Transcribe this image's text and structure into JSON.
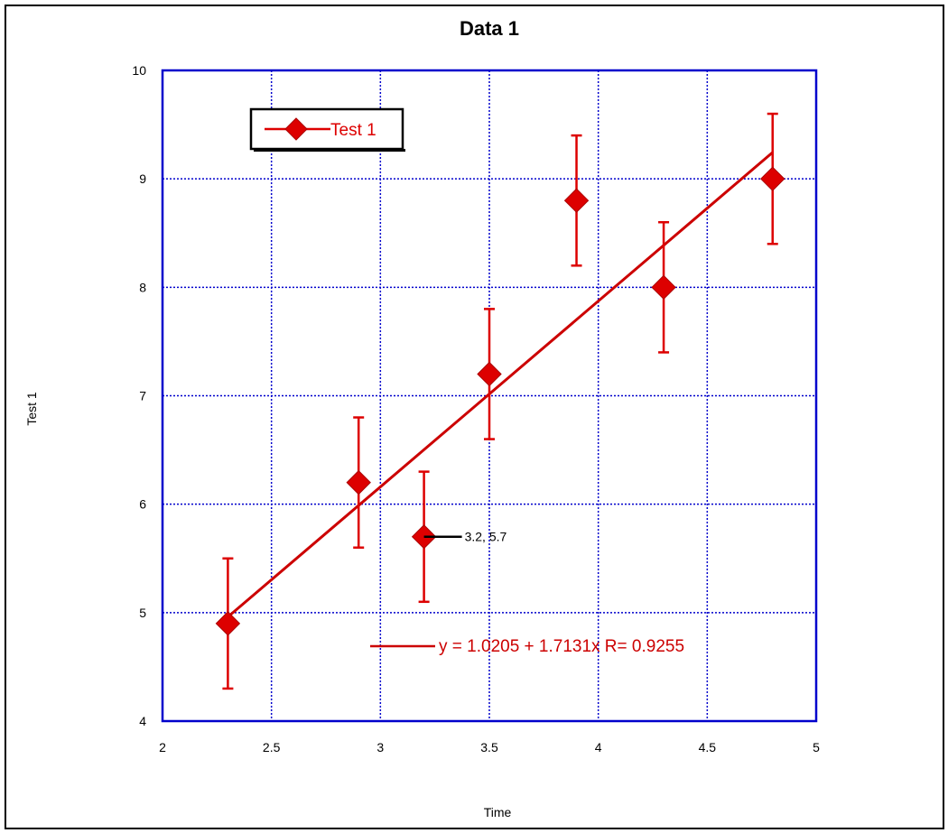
{
  "chart_data": {
    "type": "scatter",
    "title": "Data 1",
    "xlabel": "Time",
    "ylabel": "Test 1",
    "xlim": [
      2,
      5
    ],
    "ylim": [
      4,
      10
    ],
    "x_ticks": [
      "2",
      "2.5",
      "3",
      "3.5",
      "4",
      "4.5",
      "5"
    ],
    "y_ticks": [
      "4",
      "5",
      "6",
      "7",
      "8",
      "9",
      "10"
    ],
    "grid": true,
    "legend_position": "top-left",
    "series": [
      {
        "name": "Test 1",
        "marker": "diamond",
        "color": "#dd0000",
        "x": [
          2.3,
          2.9,
          3.2,
          3.5,
          3.9,
          4.3,
          4.8
        ],
        "y": [
          4.9,
          6.2,
          5.7,
          7.2,
          8.8,
          8.0,
          9.0
        ],
        "error": [
          0.6,
          0.6,
          0.6,
          0.6,
          0.6,
          0.6,
          0.6
        ]
      }
    ],
    "fit": {
      "intercept": 1.0205,
      "slope": 1.7131,
      "x_range": [
        2.3,
        4.8
      ],
      "label": "y = 1.0205 + 1.7131x   R= 0.9255"
    },
    "annotations": [
      {
        "text": "3.2, 5.7",
        "x": 3.2,
        "y": 5.7
      }
    ],
    "colors": {
      "axes": "#0000cc",
      "grid": "#0000cc",
      "series": "#dd0000",
      "fit": "#cc0000"
    }
  }
}
